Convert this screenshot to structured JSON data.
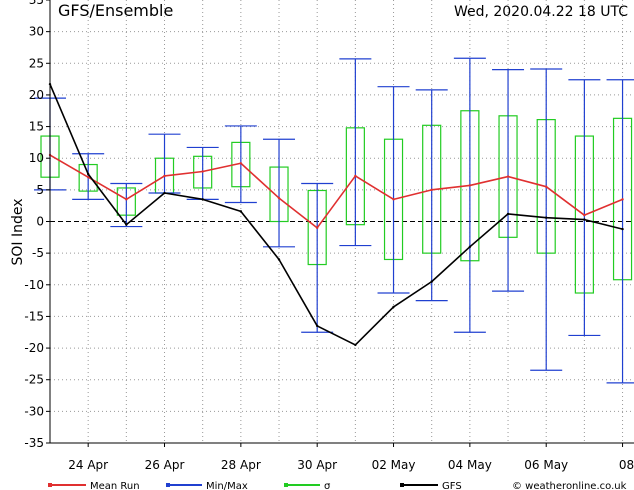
{
  "chart_data": {
    "type": "line",
    "title": "GFS/Ensemble",
    "run_label": "Wed, 2020.04.22   18 UTC",
    "ylabel": "SOI Index",
    "xlabel": "",
    "ylim": [
      -35,
      35
    ],
    "yticks": [
      -35,
      -30,
      -25,
      -20,
      -15,
      -10,
      -5,
      0,
      5,
      10,
      15,
      20,
      25,
      30,
      35
    ],
    "xlim": [
      0,
      15.3
    ],
    "x_ticks": [
      {
        "x": 1,
        "label": "24 Apr"
      },
      {
        "x": 3,
        "label": "26 Apr"
      },
      {
        "x": 5,
        "label": "28 Apr"
      },
      {
        "x": 7,
        "label": "30 Apr"
      },
      {
        "x": 9,
        "label": "02 May"
      },
      {
        "x": 11,
        "label": "04 May"
      },
      {
        "x": 13,
        "label": "06 May"
      },
      {
        "x": 15,
        "label": "08"
      }
    ],
    "grid": true,
    "zero_line": true,
    "series": [
      {
        "name": "Mean Run",
        "color": "#e03030",
        "x": [
          0,
          1,
          2,
          3,
          4,
          5,
          6,
          7,
          8,
          9,
          10,
          11,
          12,
          13,
          14,
          15
        ],
        "values": [
          10.5,
          7,
          3.5,
          7.2,
          7.9,
          9.2,
          3.7,
          -1,
          7.2,
          3.5,
          5,
          5.7,
          7.1,
          5.5,
          1,
          3.5
        ]
      },
      {
        "name": "GFS",
        "color": "#000000",
        "x": [
          0,
          1,
          2,
          3,
          4,
          5,
          6,
          7,
          8,
          9,
          10,
          11,
          12,
          13,
          14,
          15
        ],
        "values": [
          21.7,
          7.5,
          -0.5,
          4.5,
          3.5,
          1.6,
          -6,
          -16.5,
          -19.5,
          -13.5,
          -9.5,
          -4,
          1.2,
          0.6,
          0.3,
          -1.2
        ]
      }
    ],
    "minmax": {
      "name": "Min/Max",
      "color": "#2040d0",
      "x": [
        0,
        1,
        2,
        3,
        4,
        5,
        6,
        7,
        8,
        9,
        10,
        11,
        12,
        13,
        14,
        15
      ],
      "min": [
        5,
        3.5,
        -0.8,
        4.5,
        3.5,
        3,
        -4,
        -17.5,
        -3.8,
        -11.3,
        -12.5,
        -17.5,
        -11,
        -23.5,
        -18,
        -25.5
      ],
      "max": [
        19.5,
        10.7,
        6,
        13.8,
        11.7,
        15.1,
        13,
        6,
        25.7,
        21.3,
        20.8,
        25.8,
        24,
        24.1,
        22.4,
        22.4
      ]
    },
    "sigma": {
      "name": "σ",
      "color": "#22cc22",
      "x": [
        0,
        1,
        2,
        3,
        4,
        5,
        6,
        7,
        8,
        9,
        10,
        11,
        12,
        13,
        14,
        15
      ],
      "low": [
        7,
        4.8,
        1,
        4.5,
        5.3,
        5.5,
        0,
        -6.8,
        -0.5,
        -6,
        -5,
        -6.2,
        -2.5,
        -5,
        -11.3,
        -9.2
      ],
      "high": [
        13.5,
        9,
        5.3,
        10,
        10.3,
        12.5,
        8.6,
        4.9,
        14.8,
        13,
        15.2,
        17.5,
        16.7,
        16.1,
        13.5,
        16.3
      ]
    },
    "legend_position": "bottom",
    "legend": [
      {
        "label": "Mean Run",
        "color": "#e03030",
        "kind": "line-dot"
      },
      {
        "label": "Min/Max",
        "color": "#2040d0",
        "kind": "line-dot"
      },
      {
        "label": "σ",
        "color": "#22cc22",
        "kind": "box"
      },
      {
        "label": "GFS",
        "color": "#000000",
        "kind": "line-dot"
      }
    ],
    "credit": "© weatheronline.co.uk"
  }
}
